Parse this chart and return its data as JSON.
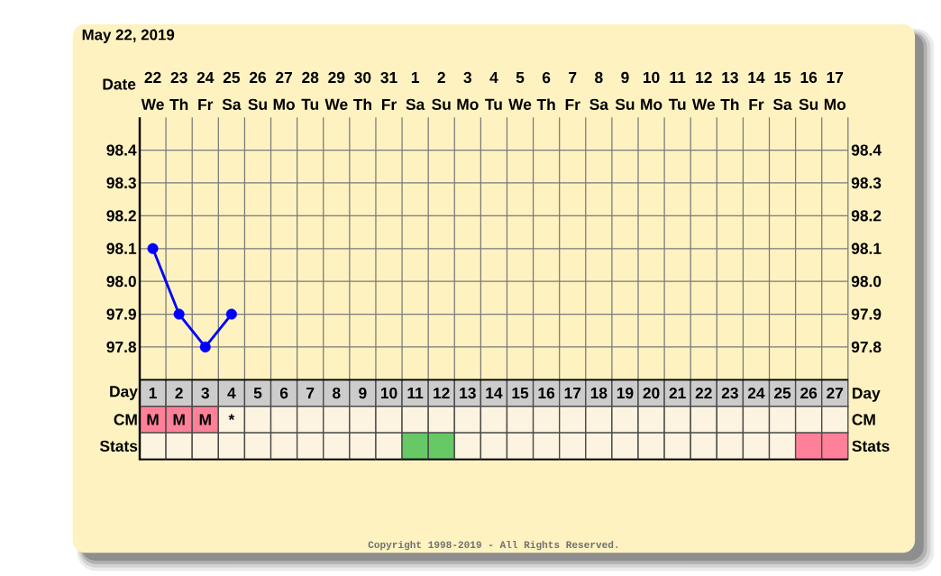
{
  "chart_data": {
    "type": "line",
    "title": "May 22, 2019",
    "xlabel": "Date",
    "x2label": "Day",
    "categories": [
      "22 We",
      "23 Th",
      "24 Fr",
      "25 Sa",
      "26 Su",
      "27 Mo",
      "28 Tu",
      "29 We",
      "30 Th",
      "31 Fr",
      "1 Sa",
      "2 Su",
      "3 Mo",
      "4 Tu",
      "5 We",
      "6 Th",
      "7 Fr",
      "8 Sa",
      "9 Su",
      "10 Mo",
      "11 Tu",
      "12 We",
      "13 Th",
      "14 Fr",
      "15 Sa",
      "16 Su",
      "17 Mo"
    ],
    "values": [
      98.1,
      97.9,
      97.8,
      97.9,
      null,
      null,
      null,
      null,
      null,
      null,
      null,
      null,
      null,
      null,
      null,
      null,
      null,
      null,
      null,
      null,
      null,
      null,
      null,
      null,
      null,
      null,
      null
    ],
    "color": "#0000ff",
    "marker": "circle",
    "x2lim": [
      0.5,
      27.5
    ],
    "x2ticks": [
      1,
      2,
      3,
      4,
      5,
      6,
      7,
      8,
      9,
      10,
      11,
      12,
      13,
      14,
      15,
      16,
      17,
      18,
      19,
      20,
      21,
      22,
      23,
      24,
      25,
      26,
      27
    ],
    "ylim": [
      97.7,
      98.5
    ],
    "yticks": [
      97.8,
      97.9,
      {
        "value": 98,
        "label": "98.0"
      },
      98.1,
      98.2,
      98.3,
      98.4
    ],
    "y2lim": [
      97.7,
      98.5
    ],
    "y2ticks": [
      97.8,
      97.9,
      {
        "value": 98,
        "label": "98.0"
      },
      98.1,
      98.2,
      98.3,
      98.4
    ],
    "grid": true,
    "annotations": [
      "CM",
      "Stats",
      "M",
      "M",
      "M",
      "*",
      "Copyright 1998-2019 - All Rights Reserved."
    ]
  }
}
